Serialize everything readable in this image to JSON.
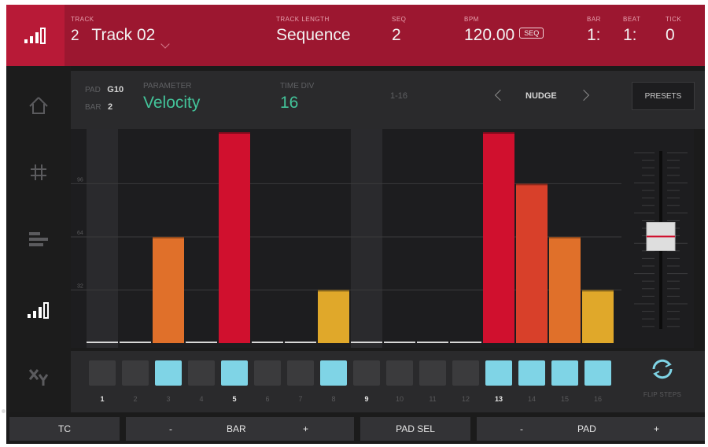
{
  "header": {
    "track": {
      "label": "TRACK",
      "number": "2",
      "name": "Track 02"
    },
    "track_length": {
      "label": "TRACK LENGTH",
      "value": "Sequence"
    },
    "seq": {
      "label": "SEQ",
      "value": "2"
    },
    "bpm": {
      "label": "BPM",
      "value": "120.00",
      "badge": "SEQ"
    },
    "bar": {
      "label": "BAR",
      "value": "1:"
    },
    "beat": {
      "label": "BEAT",
      "value": "1:"
    },
    "tick": {
      "label": "TICK",
      "value": "0"
    }
  },
  "sidebar": {
    "items": [
      {
        "icon": "home-icon"
      },
      {
        "icon": "grid-icon"
      },
      {
        "icon": "horizontal-bars-icon"
      },
      {
        "icon": "step-editor-icon",
        "active": true
      },
      {
        "icon": "xy-icon"
      }
    ]
  },
  "params": {
    "pad_label": "PAD",
    "pad_value": "G10",
    "bar_label": "BAR",
    "bar_value": "2",
    "parameter_label": "PARAMETER",
    "parameter_value": "Velocity",
    "time_div_label": "TIME DIV",
    "time_div_value": "16",
    "range": "1-16",
    "nudge": "NUDGE",
    "presets": "PRESETS"
  },
  "chart_data": {
    "type": "bar",
    "categories": [
      "1",
      "2",
      "3",
      "4",
      "5",
      "6",
      "7",
      "8",
      "9",
      "10",
      "11",
      "12",
      "13",
      "14",
      "15",
      "16"
    ],
    "values": [
      0,
      0,
      64,
      0,
      127,
      0,
      0,
      32,
      0,
      0,
      0,
      0,
      127,
      96,
      64,
      32
    ],
    "ylim": [
      0,
      127
    ],
    "gridlines": [
      32,
      64,
      96
    ],
    "grid_labels": [
      "32",
      "64",
      "96"
    ],
    "grid": true,
    "colors": {
      "127": "#d0102e",
      "96": "#d8402a",
      "64": "#e0702a",
      "32": "#e0a82a",
      "empty": "#d8d8d8"
    }
  },
  "fader": {
    "level": 0.52
  },
  "pads": {
    "active": [
      3,
      5,
      8,
      13,
      14,
      15,
      16
    ],
    "numbers": [
      "1",
      "2",
      "3",
      "4",
      "5",
      "6",
      "7",
      "8",
      "9",
      "10",
      "11",
      "12",
      "13",
      "14",
      "15",
      "16"
    ],
    "bold": [
      1,
      5,
      9,
      13
    ],
    "flip_label": "FLIP STEPS"
  },
  "softkeys": {
    "tc": "TC",
    "bar_minus": "-",
    "bar": "BAR",
    "bar_plus": "+",
    "pad_sel": "PAD SEL",
    "pad_minus": "-",
    "pad": "PAD",
    "pad_plus": "+"
  },
  "colors": {
    "header_bg": "#9c1730",
    "accent_green": "#43c49a",
    "pad_active": "#7fd4e6"
  }
}
